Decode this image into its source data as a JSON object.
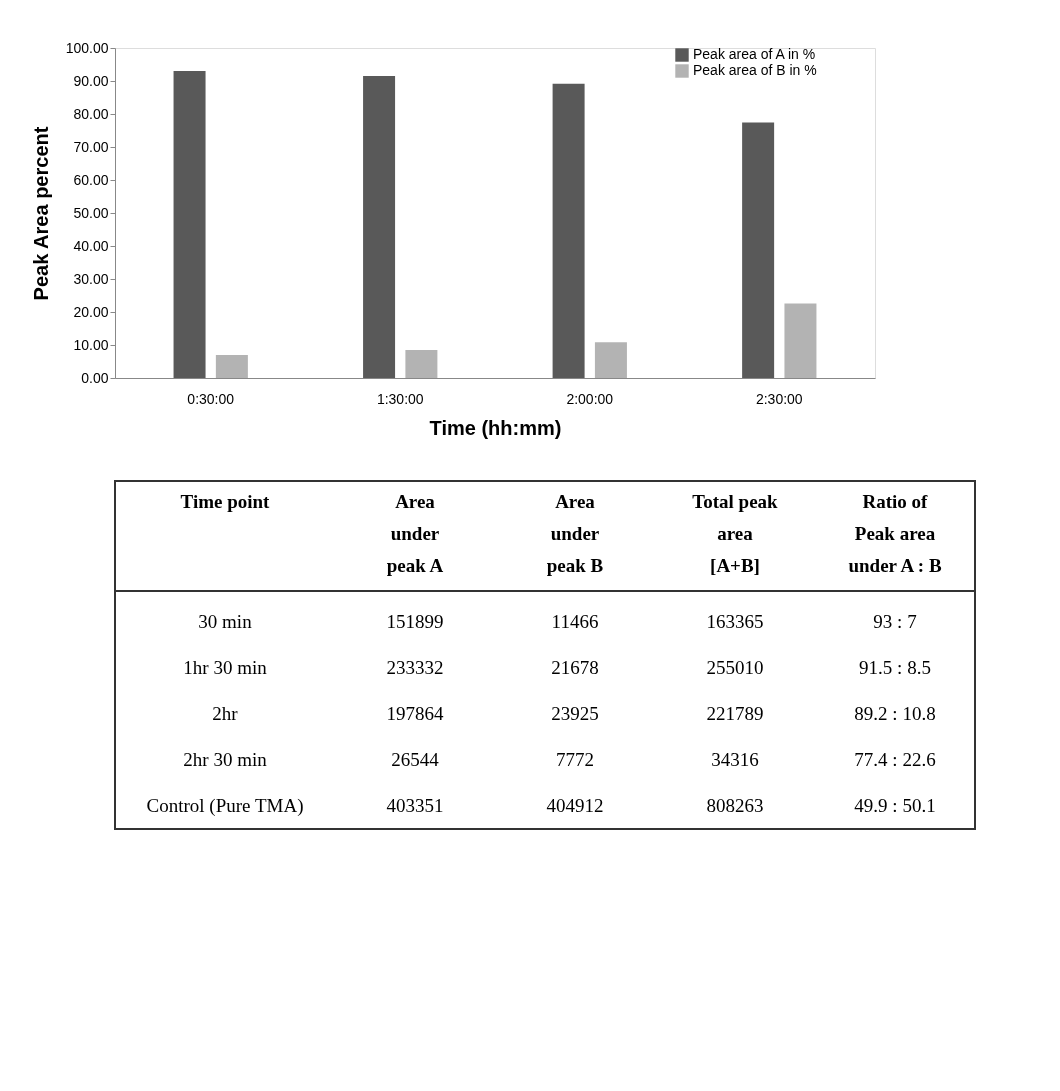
{
  "chart_data": [
    {
      "type": "bar",
      "xlabel": "Time (hh:mm)",
      "ylabel": "Peak Area percent",
      "categories": [
        "0:30:00",
        "1:30:00",
        "2:00:00",
        "2:30:00"
      ],
      "series": [
        {
          "name": "Peak area of A in %",
          "color": "#595959",
          "values": [
            93,
            91.5,
            89.2,
            77.4
          ]
        },
        {
          "name": "Peak area of B in %",
          "color": "#b3b3b3",
          "values": [
            7,
            8.5,
            10.8,
            22.6
          ]
        }
      ],
      "ylim": [
        0,
        100
      ],
      "yticks": [
        {
          "value": 0,
          "label": "0.00"
        },
        {
          "value": 10,
          "label": "10.00"
        },
        {
          "value": 20,
          "label": "20.00"
        },
        {
          "value": 30,
          "label": "30.00"
        },
        {
          "value": 40,
          "label": "40.00"
        },
        {
          "value": 50,
          "label": "50.00"
        },
        {
          "value": 60,
          "label": "60.00"
        },
        {
          "value": 70,
          "label": "70.00"
        },
        {
          "value": 80,
          "label": "80.00"
        },
        {
          "value": 90,
          "label": "90.00"
        },
        {
          "value": 100,
          "label": "100.00"
        }
      ],
      "grid": false,
      "legend": "top right"
    },
    {
      "type": "other",
      "categories": [
        "Time point",
        "Area\nunder\npeak A",
        "Area\nunder\npeak B",
        "Total peak\narea\n[A+B]",
        "Ratio of\nPeak area\nunder A : B"
      ],
      "y_categories": [
        "30 min",
        "1hr 30 min",
        "2hr",
        "2hr 30 min",
        "Control (Pure TMA)"
      ],
      "cell_labels": [
        [
          "151899",
          "11466",
          "163365",
          "93 : 7"
        ],
        [
          "233332",
          "21678",
          "255010",
          "91.5 : 8.5"
        ],
        [
          "197864",
          "23925",
          "221789",
          "89.2 : 10.8"
        ],
        [
          "26544",
          "7772",
          "34316",
          "77.4 : 22.6"
        ],
        [
          "403351",
          "404912",
          "808263",
          "49.9 : 50.1"
        ]
      ]
    }
  ]
}
